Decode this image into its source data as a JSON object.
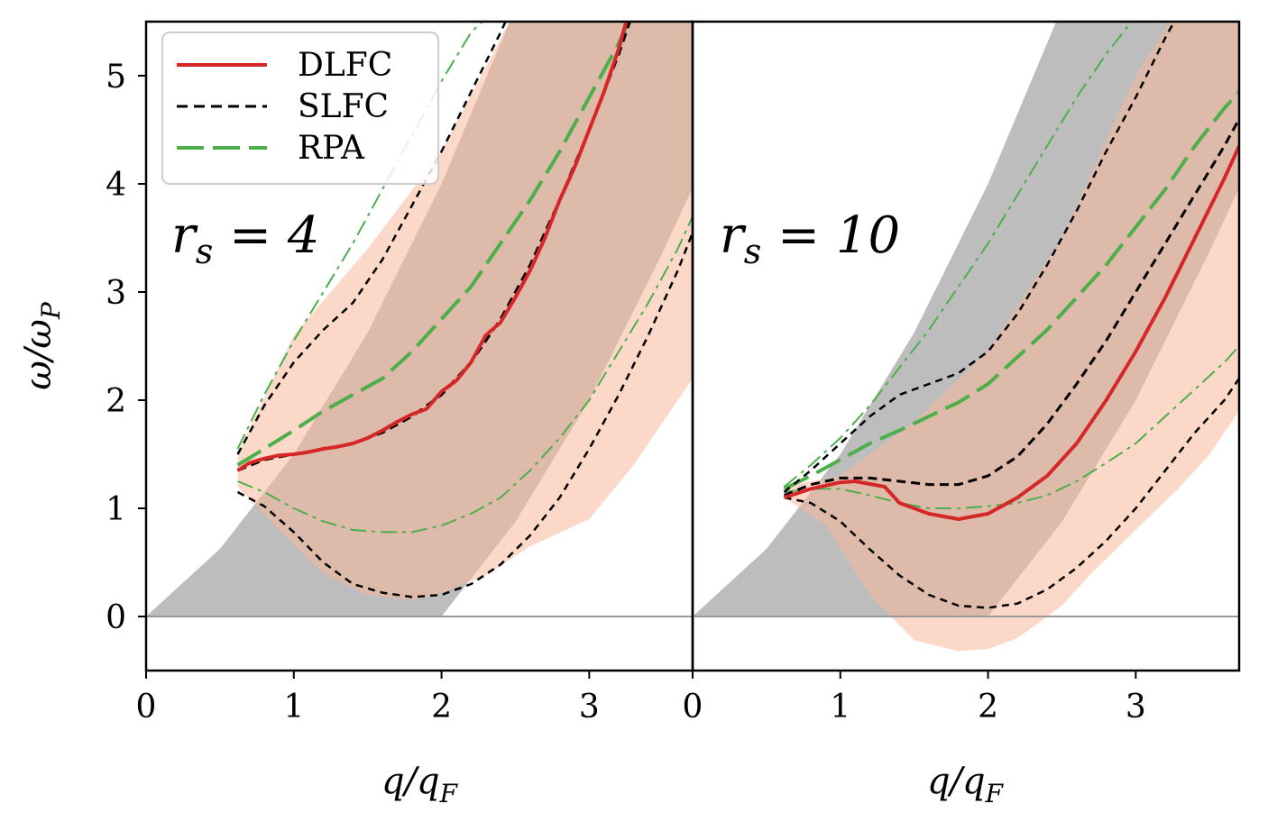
{
  "chart_data": {
    "type": "line",
    "xlabel": "q/q_F",
    "ylabel": "ω/ω_P",
    "shared_ylim": [
      -0.5,
      5.5
    ],
    "y_ticks": [
      0,
      1,
      2,
      3,
      4,
      5
    ],
    "legend": {
      "placement": "top-left",
      "entries": [
        {
          "label": "DLFC",
          "color": "#d62728",
          "dash": "solid"
        },
        {
          "label": "SLFC",
          "color": "#000000",
          "dash": "dashed"
        },
        {
          "label": "RPA",
          "color": "#4daf4a",
          "dash": "long-dash"
        }
      ]
    },
    "panels": [
      {
        "label": "r_s = 4",
        "label_parts": {
          "var": "r",
          "sub": "s",
          "rest": " = 4"
        },
        "xlim": [
          0,
          3.7
        ],
        "x_ticks": [
          0,
          1,
          2,
          3
        ],
        "particle_hole_band": {
          "lower": [
            [
              0,
              0
            ],
            [
              2,
              0
            ],
            [
              2.5,
              0.875
            ],
            [
              3,
              2
            ],
            [
              3.5,
              3.375
            ],
            [
              3.7,
              3.96
            ]
          ],
          "upper": [
            [
              0,
              0
            ],
            [
              0.5,
              0.625
            ],
            [
              1,
              1.5
            ],
            [
              1.5,
              2.625
            ],
            [
              2,
              4
            ],
            [
              2.5,
              5.625
            ],
            [
              3.7,
              11
            ]
          ]
        },
        "dlfc_band": {
          "upper": [
            [
              0.62,
              1.5
            ],
            [
              1.0,
              2.6
            ],
            [
              1.5,
              3.4
            ],
            [
              2.0,
              4.3
            ],
            [
              2.5,
              5.6
            ],
            [
              3.0,
              6.8
            ],
            [
              3.7,
              8.5
            ]
          ],
          "lower": [
            [
              3.7,
              2.2
            ],
            [
              3.3,
              1.4
            ],
            [
              3.0,
              0.9
            ],
            [
              2.6,
              0.65
            ],
            [
              2.3,
              0.38
            ],
            [
              2.0,
              0.22
            ],
            [
              1.8,
              0.15
            ],
            [
              1.5,
              0.2
            ],
            [
              1.2,
              0.4
            ],
            [
              0.9,
              0.8
            ],
            [
              0.62,
              1.2
            ]
          ]
        },
        "dlfc": {
          "x": [
            0.62,
            0.7,
            0.8,
            0.9,
            1.0,
            1.1,
            1.2,
            1.3,
            1.4,
            1.5,
            1.6,
            1.7,
            1.8,
            1.9,
            2.0,
            2.1,
            2.2,
            2.3,
            2.4,
            2.5,
            2.6,
            2.7,
            2.8,
            2.9,
            3.0,
            3.1,
            3.2,
            3.25
          ],
          "y": [
            1.35,
            1.42,
            1.46,
            1.49,
            1.5,
            1.52,
            1.55,
            1.57,
            1.6,
            1.65,
            1.72,
            1.8,
            1.87,
            1.92,
            2.08,
            2.18,
            2.35,
            2.6,
            2.72,
            2.95,
            3.2,
            3.5,
            3.85,
            4.15,
            4.5,
            4.85,
            5.25,
            5.5
          ]
        },
        "slfc_upper": {
          "x": [
            0.62,
            0.8,
            1.0,
            1.2,
            1.4,
            1.6,
            1.8,
            2.0,
            2.2,
            2.4,
            2.5
          ],
          "y": [
            1.5,
            1.95,
            2.35,
            2.65,
            2.9,
            3.3,
            3.8,
            4.3,
            4.85,
            5.4,
            5.7
          ]
        },
        "slfc_middle": {
          "x": [
            0.62,
            0.8,
            1.0,
            1.2,
            1.4,
            1.6,
            1.8,
            2.0,
            2.2,
            2.4,
            2.6,
            2.8,
            3.0,
            3.2,
            3.3
          ],
          "y": [
            1.35,
            1.45,
            1.5,
            1.55,
            1.6,
            1.7,
            1.85,
            2.05,
            2.35,
            2.75,
            3.25,
            3.85,
            4.5,
            5.2,
            5.6
          ]
        },
        "slfc_lower": {
          "x": [
            0.62,
            0.8,
            1.0,
            1.2,
            1.4,
            1.6,
            1.8,
            2.0,
            2.2,
            2.4,
            2.6,
            2.8,
            3.0,
            3.2,
            3.4,
            3.6,
            3.7
          ],
          "y": [
            1.15,
            1.02,
            0.78,
            0.5,
            0.3,
            0.22,
            0.18,
            0.2,
            0.3,
            0.48,
            0.75,
            1.1,
            1.55,
            2.05,
            2.6,
            3.2,
            3.55
          ]
        },
        "rpa_main": {
          "x": [
            0.62,
            0.8,
            1.0,
            1.2,
            1.4,
            1.6,
            1.8,
            2.0,
            2.2,
            2.4,
            2.6,
            2.8,
            3.0,
            3.2,
            3.3
          ],
          "y": [
            1.4,
            1.55,
            1.72,
            1.9,
            2.05,
            2.2,
            2.45,
            2.75,
            3.05,
            3.45,
            3.85,
            4.3,
            4.8,
            5.3,
            5.6
          ]
        },
        "rpa_upper": {
          "x": [
            0.62,
            0.8,
            1.0,
            1.2,
            1.4,
            1.6,
            1.8,
            2.0,
            2.2,
            2.35
          ],
          "y": [
            1.55,
            2.05,
            2.55,
            3.0,
            3.45,
            3.95,
            4.45,
            4.95,
            5.4,
            5.6
          ]
        },
        "rpa_lower": {
          "x": [
            0.62,
            0.8,
            1.0,
            1.2,
            1.4,
            1.6,
            1.8,
            2.0,
            2.2,
            2.4,
            2.6,
            2.8,
            3.0,
            3.2,
            3.4,
            3.6,
            3.7
          ],
          "y": [
            1.25,
            1.15,
            1.0,
            0.88,
            0.8,
            0.78,
            0.78,
            0.84,
            0.95,
            1.1,
            1.35,
            1.65,
            2.0,
            2.45,
            2.9,
            3.4,
            3.7
          ]
        }
      },
      {
        "label": "r_s = 10",
        "label_parts": {
          "var": "r",
          "sub": "s",
          "rest": " = 10"
        },
        "xlim": [
          0,
          3.7
        ],
        "x_ticks": [
          0,
          1,
          2,
          3
        ],
        "particle_hole_band": {
          "lower": [
            [
              0,
              0
            ],
            [
              2,
              0
            ],
            [
              2.5,
              0.875
            ],
            [
              3,
              2
            ],
            [
              3.5,
              3.375
            ],
            [
              3.7,
              3.96
            ]
          ],
          "upper": [
            [
              0,
              0
            ],
            [
              0.5,
              0.625
            ],
            [
              1,
              1.5
            ],
            [
              1.5,
              2.625
            ],
            [
              2,
              4
            ],
            [
              2.5,
              5.625
            ],
            [
              3.7,
              11
            ]
          ]
        },
        "dlfc_band": {
          "upper": [
            [
              0.62,
              1.2
            ],
            [
              1.0,
              1.3
            ],
            [
              1.5,
              1.8
            ],
            [
              2.0,
              2.45
            ],
            [
              2.5,
              3.5
            ],
            [
              3.0,
              5.0
            ],
            [
              3.7,
              6.5
            ]
          ],
          "lower": [
            [
              3.7,
              1.9
            ],
            [
              3.5,
              1.5
            ],
            [
              3.3,
              1.2
            ],
            [
              3.0,
              0.8
            ],
            [
              2.7,
              0.4
            ],
            [
              2.5,
              0.1
            ],
            [
              2.2,
              -0.2
            ],
            [
              2.0,
              -0.3
            ],
            [
              1.8,
              -0.32
            ],
            [
              1.5,
              -0.22
            ],
            [
              1.2,
              0.2
            ],
            [
              0.9,
              0.85
            ],
            [
              0.62,
              1.1
            ]
          ]
        },
        "dlfc": {
          "x": [
            0.62,
            0.8,
            1.0,
            1.1,
            1.3,
            1.4,
            1.6,
            1.8,
            2.0,
            2.2,
            2.4,
            2.6,
            2.8,
            3.0,
            3.2,
            3.4,
            3.6,
            3.7
          ],
          "y": [
            1.1,
            1.18,
            1.24,
            1.25,
            1.2,
            1.05,
            0.95,
            0.9,
            0.95,
            1.1,
            1.3,
            1.6,
            2.0,
            2.45,
            2.95,
            3.5,
            4.05,
            4.35
          ]
        },
        "slfc_upper": {
          "x": [
            0.62,
            0.8,
            1.0,
            1.2,
            1.4,
            1.6,
            1.8,
            2.0,
            2.2,
            2.4,
            2.6,
            2.8,
            3.0,
            3.2,
            3.3
          ],
          "y": [
            1.15,
            1.35,
            1.6,
            1.85,
            2.05,
            2.15,
            2.25,
            2.45,
            2.8,
            3.25,
            3.75,
            4.3,
            4.8,
            5.35,
            5.6
          ]
        },
        "slfc_middle": {
          "x": [
            0.62,
            0.8,
            1.0,
            1.2,
            1.4,
            1.6,
            1.8,
            2.0,
            2.2,
            2.4,
            2.6,
            2.8,
            3.0,
            3.2,
            3.4,
            3.6,
            3.7
          ],
          "y": [
            1.12,
            1.22,
            1.28,
            1.28,
            1.25,
            1.22,
            1.22,
            1.3,
            1.48,
            1.78,
            2.15,
            2.55,
            3.0,
            3.45,
            3.9,
            4.35,
            4.6
          ]
        },
        "slfc_lower": {
          "x": [
            0.62,
            0.8,
            1.0,
            1.2,
            1.4,
            1.6,
            1.8,
            2.0,
            2.2,
            2.4,
            2.6,
            2.8,
            3.0,
            3.2,
            3.4,
            3.6,
            3.7
          ],
          "y": [
            1.1,
            1.05,
            0.88,
            0.62,
            0.38,
            0.2,
            0.1,
            0.08,
            0.12,
            0.25,
            0.45,
            0.7,
            1.0,
            1.35,
            1.7,
            2.0,
            2.2
          ]
        },
        "rpa_main": {
          "x": [
            0.62,
            0.8,
            1.0,
            1.2,
            1.4,
            1.6,
            1.8,
            2.0,
            2.2,
            2.4,
            2.6,
            2.8,
            3.0,
            3.2,
            3.4,
            3.6,
            3.7
          ],
          "y": [
            1.18,
            1.3,
            1.45,
            1.6,
            1.72,
            1.85,
            1.98,
            2.15,
            2.4,
            2.65,
            2.95,
            3.25,
            3.6,
            3.95,
            4.35,
            4.7,
            4.85
          ]
        },
        "rpa_upper": {
          "x": [
            0.62,
            0.8,
            1.0,
            1.2,
            1.4,
            1.6,
            1.8,
            2.0,
            2.2,
            2.4,
            2.6,
            2.8,
            3.0,
            3.1
          ],
          "y": [
            1.2,
            1.4,
            1.65,
            1.95,
            2.3,
            2.65,
            3.05,
            3.45,
            3.9,
            4.35,
            4.8,
            5.2,
            5.55,
            5.6
          ]
        },
        "rpa_lower": {
          "x": [
            0.62,
            0.8,
            1.0,
            1.2,
            1.4,
            1.6,
            1.8,
            2.0,
            2.2,
            2.4,
            2.6,
            2.8,
            3.0,
            3.2,
            3.4,
            3.6,
            3.7
          ],
          "y": [
            1.15,
            1.18,
            1.18,
            1.12,
            1.05,
            1.0,
            1.0,
            1.02,
            1.05,
            1.12,
            1.25,
            1.42,
            1.6,
            1.85,
            2.1,
            2.35,
            2.5
          ]
        }
      }
    ]
  }
}
